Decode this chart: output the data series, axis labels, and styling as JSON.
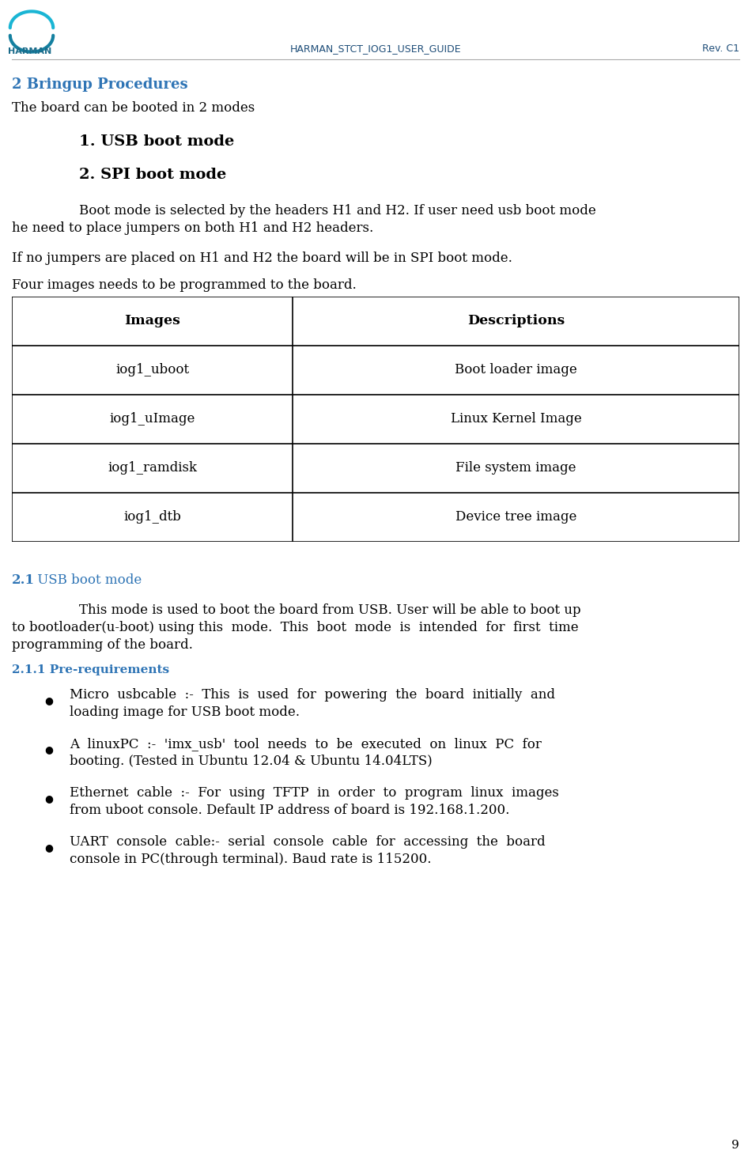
{
  "header_center": "HARMAN_STCT_IOG1_USER_GUIDE",
  "header_right": "Rev. C1",
  "header_color": "#1F4E79",
  "section2_title": "2 Bringup Procedures",
  "section_title_color": "#2E74B5",
  "intro_text": "The board can be booted in 2 modes",
  "num1": "1. USB boot mode",
  "num2": "2. SPI boot mode",
  "para1_l1": "Boot mode is selected by the headers H1 and H2. If user need usb boot mode",
  "para1_l2": "he need to place jumpers on both H1 and H2 headers.",
  "para2": "If no jumpers are placed on H1 and H2 the board will be in SPI boot mode.",
  "para3": "Four images needs to be programmed to the board.",
  "table_headers": [
    "Images",
    "Descriptions"
  ],
  "table_rows": [
    [
      "iog1_uboot",
      "Boot loader image"
    ],
    [
      "iog1_uImage",
      "Linux Kernel Image"
    ],
    [
      "iog1_ramdisk",
      "File system image"
    ],
    [
      "iog1_dtb",
      "Device tree image"
    ]
  ],
  "s21_num": "2.1",
  "s21_rest": " USB boot mode",
  "s21_color": "#2E74B5",
  "s21_l1": "This mode is used to boot the board from USB. User will be able to boot up",
  "s21_l2": "to bootloader(u-boot) using this  mode.  This  boot  mode  is  intended  for  first  time",
  "s21_l3": "programming of the board.",
  "s211_title": "2.1.1 Pre-requirements",
  "s211_color": "#2E74B5",
  "bullets": [
    [
      "Micro  usbcable  :-  This  is  used  for  powering  the  board  initially  and",
      "loading image for USB boot mode."
    ],
    [
      "A  linuxPC  :-  'imx_usb'  tool  needs  to  be  executed  on  linux  PC  for",
      "booting. (Tested in Ubuntu 12.04 & Ubuntu 14.04LTS)"
    ],
    [
      "Ethernet  cable  :-  For  using  TFTP  in  order  to  program  linux  images",
      "from uboot console. Default IP address of board is 192.168.1.200."
    ],
    [
      "UART  console  cable:-  serial  console  cable  for  accessing  the  board",
      "console in PC(through terminal). Baud rate is 115200."
    ]
  ],
  "page_num": "9",
  "bg": "#ffffff",
  "fg": "#000000",
  "logo_color1": "#1ab5d4",
  "logo_color2": "#1480a0"
}
